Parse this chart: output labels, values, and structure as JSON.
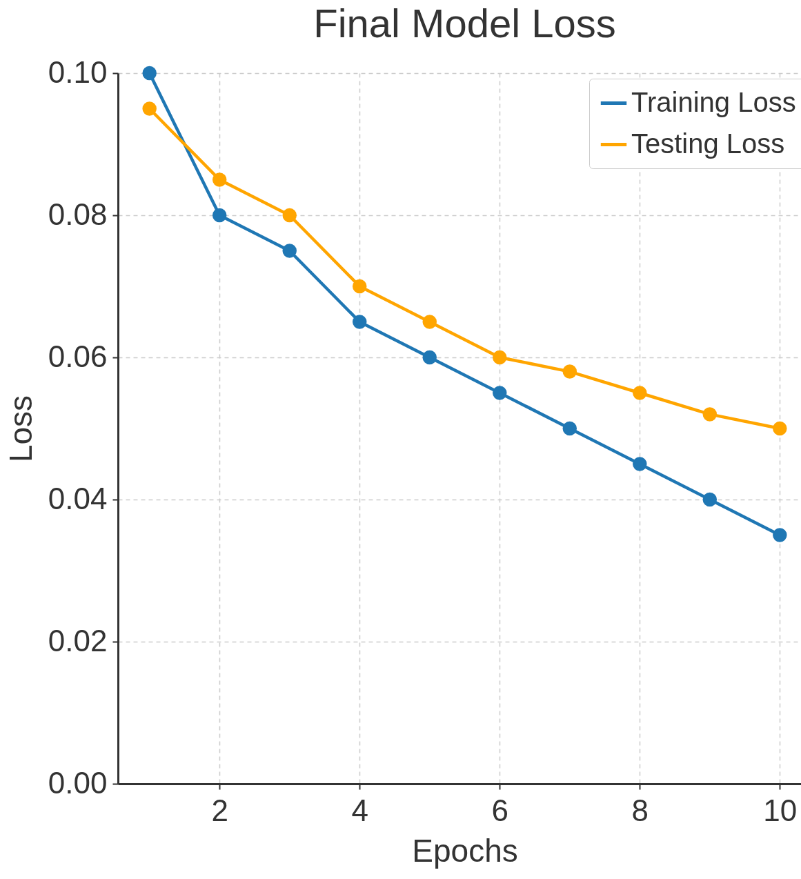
{
  "chart_data": {
    "type": "line",
    "title": "Final Model Loss",
    "xlabel": "Epochs",
    "ylabel": "Loss",
    "x": [
      1,
      2,
      3,
      4,
      5,
      6,
      7,
      8,
      9,
      10
    ],
    "series": [
      {
        "name": "Training Loss",
        "color": "#1f77b4",
        "values": [
          0.1,
          0.08,
          0.075,
          0.065,
          0.06,
          0.055,
          0.05,
          0.045,
          0.04,
          0.035
        ]
      },
      {
        "name": "Testing Loss",
        "color": "#ffa500",
        "values": [
          0.095,
          0.085,
          0.08,
          0.07,
          0.065,
          0.06,
          0.058,
          0.055,
          0.052,
          0.05
        ]
      }
    ],
    "xlim": [
      0.55,
      10.45
    ],
    "xticks": [
      2,
      4,
      6,
      8,
      10
    ],
    "ylim": [
      0,
      0.1
    ],
    "yticks": [
      {
        "value": 0,
        "label": "0.00"
      },
      {
        "value": 0.02,
        "label": "0.02"
      },
      {
        "value": 0.04,
        "label": "0.04"
      },
      {
        "value": 0.06,
        "label": "0.06"
      },
      {
        "value": 0.08,
        "label": "0.08"
      },
      {
        "value": 0.1,
        "label": "0.10"
      }
    ],
    "grid": true,
    "legend": "top right",
    "marker": "circle",
    "line_style": "solid"
  }
}
